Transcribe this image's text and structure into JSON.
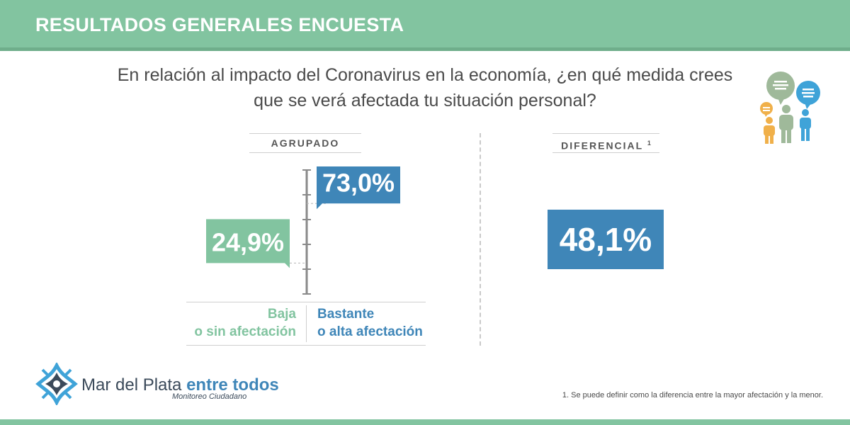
{
  "header": {
    "title": "RESULTADOS GENERALES ENCUESTA"
  },
  "question": {
    "line1": "En relación al impacto del Coronavirus en la economía, ¿en qué medida crees",
    "line2": "que se verá afectada tu situación personal?"
  },
  "sections": {
    "grouped_label": "AGRUPADO",
    "differential_label": "DIFERENCIAL",
    "differential_footnote_mark": "1"
  },
  "chart_data": [
    {
      "type": "bar",
      "title": "AGRUPADO",
      "categories": [
        "Baja o sin afectación",
        "Bastante o alta afectación"
      ],
      "category_lines": [
        [
          "Baja",
          "o sin afectación"
        ],
        [
          "Bastante",
          "o alta afectación"
        ]
      ],
      "values": [
        24.9,
        73.0
      ],
      "value_labels": [
        "24,9%",
        "73,0%"
      ],
      "colors": [
        "#82c4a0",
        "#3f86b8"
      ],
      "ylim": [
        0,
        100
      ]
    },
    {
      "type": "table",
      "title": "DIFERENCIAL",
      "value": 48.1,
      "value_label": "48,1%",
      "color": "#3f86b8"
    }
  ],
  "brand": {
    "name_main": "Mar del Plata",
    "name_accent": "entre todos",
    "subtitle": "Monitoreo Ciudadano"
  },
  "footnote": "1. Se puede definir como la diferencia entre la mayor afectación y la menor.",
  "colors": {
    "green": "#82c4a0",
    "blue": "#3f86b8",
    "dark": "#3b4a5a",
    "axis": "#8a8a8a"
  }
}
